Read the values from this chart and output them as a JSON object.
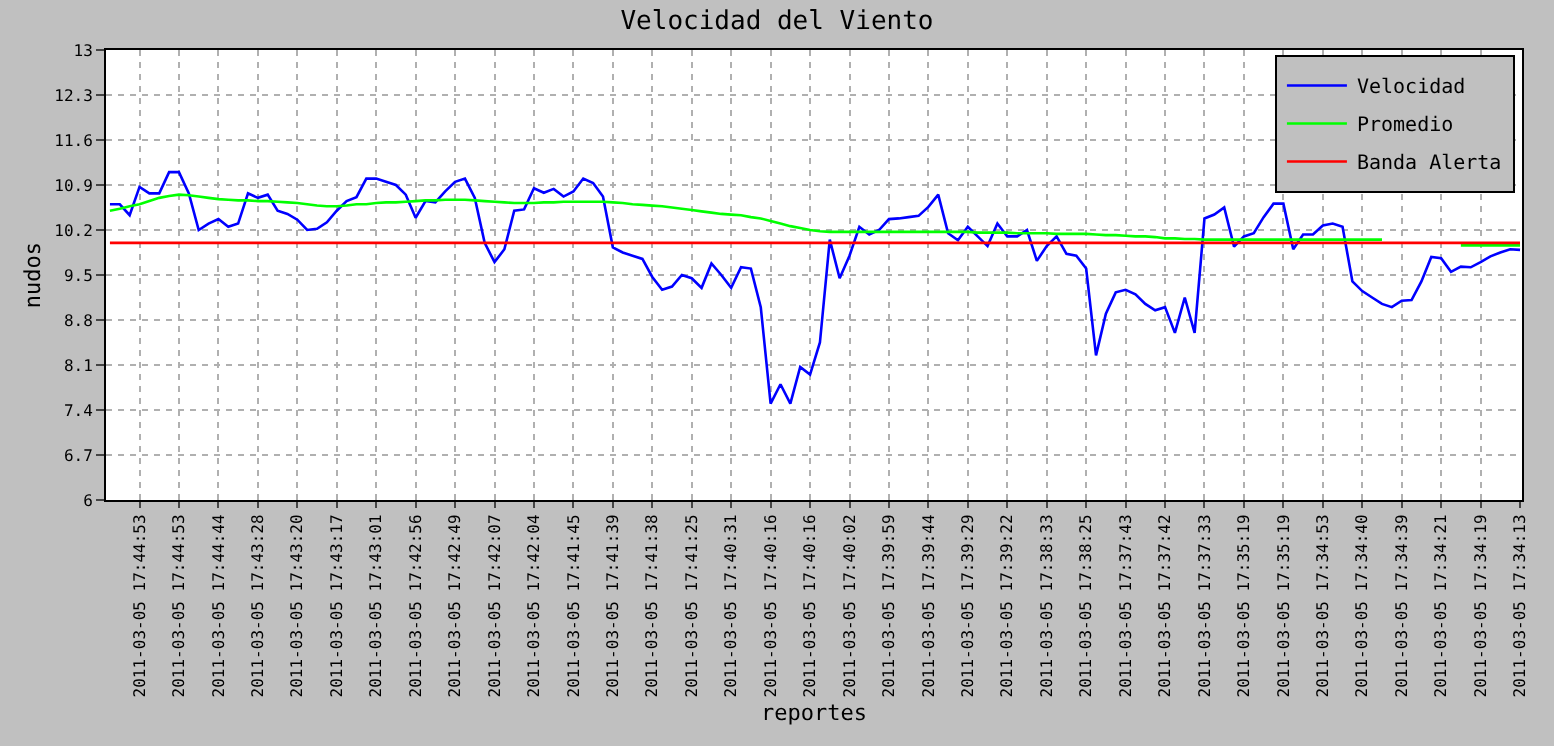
{
  "chart_data": {
    "type": "line",
    "title": "Velocidad del Viento",
    "xlabel": "reportes",
    "ylabel": "nudos",
    "categories": [
      null,
      null,
      null,
      "2011-03-05 17:44:53",
      null,
      null,
      null,
      "2011-03-05 17:44:53",
      null,
      null,
      null,
      "2011-03-05 17:44:44",
      null,
      null,
      null,
      "2011-03-05 17:43:28",
      null,
      null,
      null,
      "2011-03-05 17:43:20",
      null,
      null,
      null,
      "2011-03-05 17:43:17",
      null,
      null,
      null,
      "2011-03-05 17:43:01",
      null,
      null,
      null,
      "2011-03-05 17:42:56",
      null,
      null,
      null,
      "2011-03-05 17:42:49",
      null,
      null,
      null,
      "2011-03-05 17:42:07",
      null,
      null,
      null,
      "2011-03-05 17:42:04",
      null,
      null,
      null,
      "2011-03-05 17:41:45",
      null,
      null,
      null,
      "2011-03-05 17:41:39",
      null,
      null,
      null,
      "2011-03-05 17:41:38",
      null,
      null,
      null,
      "2011-03-05 17:41:25",
      null,
      null,
      null,
      "2011-03-05 17:40:31",
      null,
      null,
      null,
      "2011-03-05 17:40:16",
      null,
      null,
      null,
      "2011-03-05 17:40:16",
      null,
      null,
      null,
      "2011-03-05 17:40:02",
      null,
      null,
      null,
      "2011-03-05 17:39:59",
      null,
      null,
      null,
      "2011-03-05 17:39:44",
      null,
      null,
      null,
      "2011-03-05 17:39:29",
      null,
      null,
      null,
      "2011-03-05 17:39:22",
      null,
      null,
      null,
      "2011-03-05 17:38:33",
      null,
      null,
      null,
      "2011-03-05 17:38:25",
      null,
      null,
      null,
      "2011-03-05 17:37:43",
      null,
      null,
      null,
      "2011-03-05 17:37:42",
      null,
      null,
      null,
      "2011-03-05 17:37:33",
      null,
      null,
      null,
      "2011-03-05 17:35:19",
      null,
      null,
      null,
      "2011-03-05 17:35:19",
      null,
      null,
      null,
      "2011-03-05 17:34:53",
      null,
      null,
      null,
      "2011-03-05 17:34:40",
      null,
      null,
      null,
      "2011-03-05 17:34:39",
      null,
      null,
      null,
      "2011-03-05 17:34:21",
      null,
      null,
      null,
      "2011-03-05 17:34:19",
      null,
      null,
      null,
      "2011-03-05 17:34:13"
    ],
    "series": [
      {
        "name": "Velocidad",
        "color": "#0000ff",
        "values": [
          10.6,
          10.6,
          10.43,
          10.87,
          10.77,
          10.77,
          11.1,
          11.1,
          10.77,
          10.2,
          10.3,
          10.37,
          10.25,
          10.3,
          10.77,
          10.7,
          10.75,
          10.5,
          10.45,
          10.36,
          10.2,
          10.22,
          10.32,
          10.5,
          10.65,
          10.71,
          11.0,
          11.0,
          10.95,
          10.9,
          10.75,
          10.39,
          10.65,
          10.63,
          10.8,
          10.95,
          11.0,
          10.7,
          10.0,
          9.7,
          9.9,
          10.5,
          10.52,
          10.85,
          10.78,
          10.84,
          10.72,
          10.8,
          11.0,
          10.93,
          10.72,
          9.93,
          9.85,
          9.8,
          9.75,
          9.47,
          9.27,
          9.32,
          9.5,
          9.45,
          9.3,
          9.68,
          9.5,
          9.3,
          9.62,
          9.6,
          9.0,
          7.5,
          7.8,
          7.5,
          8.07,
          7.95,
          8.45,
          10.05,
          9.45,
          9.8,
          10.25,
          10.13,
          10.2,
          10.37,
          10.38,
          10.4,
          10.42,
          10.56,
          10.75,
          10.15,
          10.04,
          10.25,
          10.1,
          9.95,
          10.3,
          10.1,
          10.1,
          10.2,
          9.72,
          9.95,
          10.1,
          9.83,
          9.8,
          9.6,
          8.25,
          8.9,
          9.23,
          9.27,
          9.2,
          9.05,
          8.95,
          9.0,
          8.6,
          9.15,
          8.6,
          10.38,
          10.44,
          10.55,
          9.94,
          10.1,
          10.15,
          10.4,
          10.61,
          10.61,
          9.9,
          10.13,
          10.13,
          10.27,
          10.3,
          10.25,
          9.4,
          9.25,
          9.15,
          9.05,
          9.0,
          9.1,
          9.11,
          9.4,
          9.78,
          9.76,
          9.55,
          9.63,
          9.62,
          9.7,
          9.79,
          9.85,
          9.9,
          9.89
        ]
      },
      {
        "name": "Promedio",
        "color": "#00ff00",
        "values": [
          10.5,
          10.53,
          10.57,
          10.6,
          10.65,
          10.7,
          10.73,
          10.75,
          10.74,
          10.72,
          10.7,
          10.68,
          10.67,
          10.66,
          10.66,
          10.65,
          10.65,
          10.64,
          10.63,
          10.62,
          10.6,
          10.58,
          10.57,
          10.57,
          10.58,
          10.6,
          10.6,
          10.62,
          10.63,
          10.63,
          10.64,
          10.65,
          10.66,
          10.66,
          10.67,
          10.67,
          10.67,
          10.66,
          10.65,
          10.64,
          10.63,
          10.62,
          10.62,
          10.62,
          10.63,
          10.63,
          10.64,
          10.64,
          10.64,
          10.64,
          10.64,
          10.63,
          10.62,
          10.6,
          10.59,
          10.58,
          10.57,
          10.55,
          10.53,
          10.51,
          10.49,
          10.47,
          10.45,
          10.44,
          10.43,
          10.4,
          10.38,
          10.34,
          10.3,
          10.26,
          10.23,
          10.2,
          10.18,
          10.17,
          10.17,
          10.17,
          10.17,
          10.17,
          10.17,
          10.17,
          10.17,
          10.17,
          10.17,
          10.17,
          10.17,
          10.17,
          10.17,
          10.17,
          10.16,
          10.16,
          10.16,
          10.16,
          10.15,
          10.15,
          10.15,
          10.15,
          10.14,
          10.14,
          10.14,
          10.14,
          10.13,
          10.12,
          10.12,
          10.11,
          10.1,
          10.1,
          10.09,
          10.07,
          10.07,
          10.06,
          10.06,
          10.05,
          10.05,
          10.05,
          10.05,
          10.05,
          10.05,
          10.05,
          10.05,
          10.05,
          10.05,
          10.05,
          10.05,
          10.05,
          10.05,
          10.05,
          10.05,
          10.05,
          10.05,
          10.05,
          null,
          null,
          null,
          null,
          null,
          null,
          null,
          9.96,
          9.96,
          9.96,
          9.96,
          9.96,
          9.96,
          9.96
        ]
      },
      {
        "name": "Banda Alerta",
        "color": "#ff0000",
        "values": [
          10,
          10,
          10,
          10,
          10,
          10,
          10,
          10,
          10,
          10,
          10,
          10,
          10,
          10,
          10,
          10,
          10,
          10,
          10,
          10,
          10,
          10,
          10,
          10,
          10,
          10,
          10,
          10,
          10,
          10,
          10,
          10,
          10,
          10,
          10,
          10,
          10,
          10,
          10,
          10,
          10,
          10,
          10,
          10,
          10,
          10,
          10,
          10,
          10,
          10,
          10,
          10,
          10,
          10,
          10,
          10,
          10,
          10,
          10,
          10,
          10,
          10,
          10,
          10,
          10,
          10,
          10,
          10,
          10,
          10,
          10,
          10,
          10,
          10,
          10,
          10,
          10,
          10,
          10,
          10,
          10,
          10,
          10,
          10,
          10,
          10,
          10,
          10,
          10,
          10,
          10,
          10,
          10,
          10,
          10,
          10,
          10,
          10,
          10,
          10,
          10,
          10,
          10,
          10,
          10,
          10,
          10,
          10,
          10,
          10,
          10,
          10,
          10,
          10,
          10,
          10,
          10,
          10,
          10,
          10,
          10,
          10,
          10,
          10,
          10,
          10,
          10,
          10,
          10,
          10,
          10,
          10,
          10,
          10,
          10,
          10,
          10,
          10,
          10,
          10,
          10,
          10,
          10,
          10
        ]
      }
    ],
    "ylim": [
      6,
      13
    ],
    "yticks": [
      6,
      6.7,
      7.4,
      8.1,
      8.8,
      9.5,
      10.2,
      10.9,
      11.6,
      12.3,
      13
    ],
    "grid": true,
    "legend": "top right",
    "marker": "none",
    "line_style": "solid"
  }
}
